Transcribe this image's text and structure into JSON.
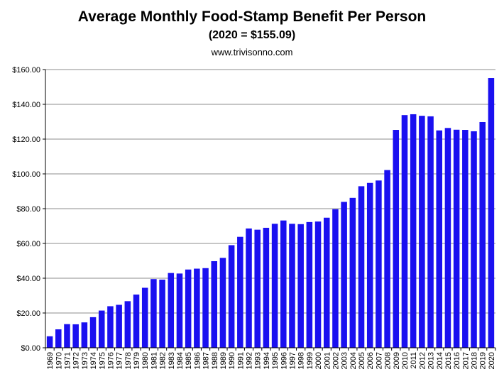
{
  "titles": {
    "main": "Average Monthly Food-Stamp Benefit Per Person",
    "subtitle": "(2020 = $155.09)",
    "source": "www.trivisonno.com"
  },
  "chart_data": {
    "type": "bar",
    "title": "Average Monthly Food-Stamp Benefit Per Person",
    "subtitle": "(2020 = $155.09)",
    "xlabel": "",
    "ylabel": "",
    "ylim": [
      0,
      160
    ],
    "y_ticks": [
      "$0.00",
      "$20.00",
      "$40.00",
      "$60.00",
      "$80.00",
      "$100.00",
      "$120.00",
      "$140.00",
      "$160.00"
    ],
    "grid": true,
    "bar_color": "#1a10f0",
    "categories": [
      "1969",
      "1970",
      "1971",
      "1972",
      "1973",
      "1974",
      "1975",
      "1976",
      "1977",
      "1978",
      "1979",
      "1980",
      "1981",
      "1982",
      "1983",
      "1984",
      "1985",
      "1986",
      "1987",
      "1988",
      "1989",
      "1990",
      "1991",
      "1992",
      "1993",
      "1994",
      "1995",
      "1996",
      "1997",
      "1998",
      "1999",
      "2000",
      "2001",
      "2002",
      "2003",
      "2004",
      "2005",
      "2006",
      "2007",
      "2008",
      "2009",
      "2010",
      "2011",
      "2012",
      "2013",
      "2014",
      "2015",
      "2016",
      "2017",
      "2018",
      "2019",
      "2020"
    ],
    "values": [
      6.6,
      10.6,
      13.6,
      13.5,
      14.6,
      17.6,
      21.4,
      23.9,
      24.7,
      26.8,
      30.6,
      34.5,
      39.5,
      39.2,
      43.0,
      42.7,
      45.0,
      45.5,
      45.8,
      49.8,
      51.7,
      59.0,
      63.8,
      68.6,
      67.9,
      69.0,
      71.3,
      73.2,
      71.3,
      71.1,
      72.3,
      72.6,
      74.8,
      79.7,
      83.9,
      86.2,
      92.9,
      94.8,
      96.2,
      102.2,
      125.3,
      133.8,
      134.3,
      133.4,
      133.1,
      125.0,
      126.4,
      125.4,
      125.3,
      124.5,
      129.8,
      155.09
    ]
  }
}
